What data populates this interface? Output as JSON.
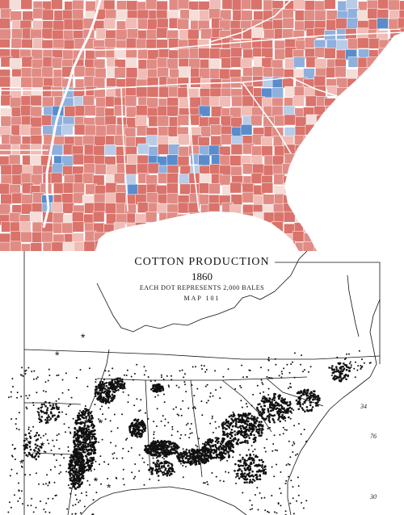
{
  "county_map": {
    "colors": {
      "dark_red": "#d9736b",
      "red": "#e08c85",
      "light_red": "#f0bcb5",
      "pale": "#f5ddd8",
      "light_blue": "#b8cce8",
      "blue": "#8fb0dd",
      "dark_blue": "#5a8ccc",
      "boundary": "#ffffff"
    }
  },
  "cotton_map": {
    "title": "COTTON PRODUCTION",
    "year": "1860",
    "legend": "EACH DOT REPRESENTS 2,000 BALES",
    "map_label": "MAP 101",
    "lat_labels": [
      "34",
      "76",
      "30"
    ],
    "colors": {
      "ink": "#111111",
      "paper": "#ffffff"
    }
  }
}
